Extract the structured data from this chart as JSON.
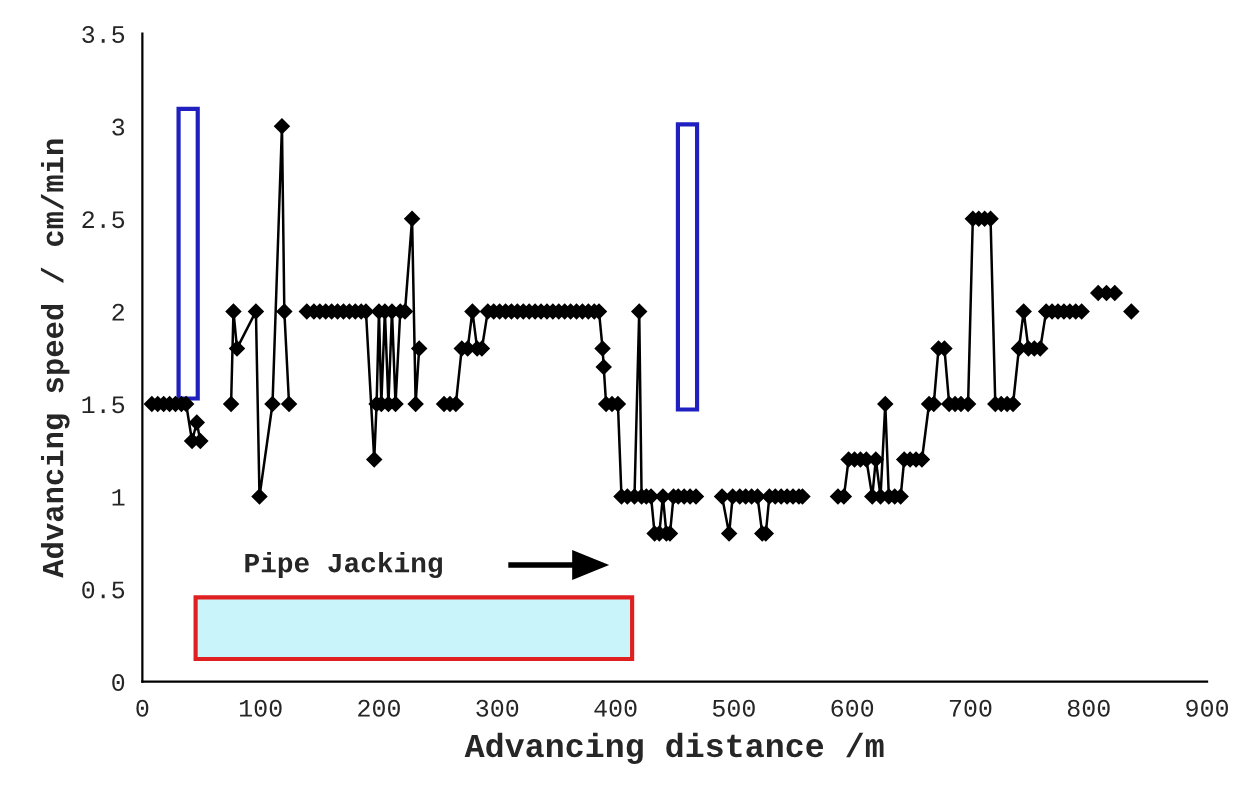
{
  "chart_data": {
    "type": "line",
    "xlabel": "Advancing distance /m",
    "ylabel": "Advancing speed / cm/min",
    "annotations": [
      "Pipe Jacking"
    ],
    "xlim": [
      0,
      900
    ],
    "xticks": [
      0,
      100,
      200,
      300,
      400,
      500,
      600,
      700,
      800,
      900
    ],
    "ylim": [
      0,
      3.5
    ],
    "yticks": [
      0,
      0.5,
      1,
      1.5,
      2,
      2.5,
      3,
      3.5
    ],
    "grid": false,
    "legend": false,
    "marker": "diamond",
    "line_style": "solid",
    "series": [
      {
        "color": "#000000",
        "x": [
          8,
          13,
          18,
          23,
          28,
          33,
          37,
          42,
          46,
          49,
          60,
          75,
          77,
          80,
          96,
          99,
          110,
          118,
          120,
          124,
          130,
          139,
          145,
          150,
          155,
          160,
          165,
          170,
          175,
          180,
          185,
          189,
          196,
          198,
          200,
          202,
          205,
          208,
          211,
          214,
          218,
          222,
          228,
          231,
          234,
          245,
          255,
          260,
          265,
          270,
          275,
          279,
          283,
          287,
          292,
          297,
          302,
          307,
          312,
          317,
          322,
          327,
          332,
          337,
          342,
          347,
          352,
          357,
          362,
          367,
          372,
          377,
          382,
          386,
          389,
          390,
          392,
          397,
          402,
          405,
          410,
          416,
          420,
          422,
          426,
          430,
          433,
          437,
          440,
          443,
          446,
          449,
          453,
          458,
          463,
          468,
          480,
          490,
          496,
          499,
          505,
          510,
          515,
          520,
          524,
          527,
          530,
          535,
          540,
          545,
          550,
          555,
          558,
          570,
          588,
          593,
          597,
          602,
          607,
          612,
          617,
          620,
          624,
          628,
          631,
          636,
          641,
          644,
          649,
          654,
          659,
          665,
          669,
          673,
          678,
          682,
          687,
          692,
          698,
          702,
          707,
          712,
          717,
          721,
          726,
          731,
          736,
          741,
          745,
          749,
          754,
          759,
          764,
          769,
          774,
          779,
          784,
          789,
          794,
          800,
          808,
          812,
          815,
          818,
          822,
          830,
          836
        ],
        "values": [
          1.5,
          1.5,
          1.5,
          1.5,
          1.5,
          1.5,
          1.5,
          1.3,
          1.4,
          1.3,
          null,
          1.5,
          2.0,
          1.8,
          2.0,
          1.0,
          1.5,
          3.0,
          2.0,
          1.5,
          null,
          2.0,
          2.0,
          2.0,
          2.0,
          2.0,
          2.0,
          2.0,
          2.0,
          2.0,
          2.0,
          2.0,
          1.2,
          1.5,
          2.0,
          1.5,
          2.0,
          1.5,
          2.0,
          1.5,
          2.0,
          2.0,
          2.5,
          1.5,
          1.8,
          null,
          1.5,
          1.5,
          1.5,
          1.8,
          1.8,
          2.0,
          1.8,
          1.8,
          2.0,
          2.0,
          2.0,
          2.0,
          2.0,
          2.0,
          2.0,
          2.0,
          2.0,
          2.0,
          2.0,
          2.0,
          2.0,
          2.0,
          2.0,
          2.0,
          2.0,
          2.0,
          2.0,
          2.0,
          1.8,
          1.7,
          1.5,
          1.5,
          1.5,
          1.0,
          1.0,
          1.0,
          2.0,
          1.0,
          1.0,
          1.0,
          0.8,
          0.8,
          1.0,
          0.8,
          0.8,
          1.0,
          1.0,
          1.0,
          1.0,
          1.0,
          null,
          1.0,
          0.8,
          1.0,
          1.0,
          1.0,
          1.0,
          1.0,
          0.8,
          0.8,
          1.0,
          1.0,
          1.0,
          1.0,
          1.0,
          1.0,
          1.0,
          null,
          1.0,
          1.0,
          1.2,
          1.2,
          1.2,
          1.2,
          1.0,
          1.2,
          1.0,
          1.5,
          1.0,
          1.0,
          1.0,
          1.2,
          1.2,
          1.2,
          1.2,
          1.5,
          1.5,
          1.8,
          1.8,
          1.5,
          1.5,
          1.5,
          1.5,
          2.5,
          2.5,
          2.5,
          2.5,
          1.5,
          1.5,
          1.5,
          1.5,
          1.8,
          2.0,
          1.8,
          1.8,
          1.8,
          2.0,
          2.0,
          2.0,
          2.0,
          2.0,
          2.0,
          2.0,
          null,
          2.1,
          null,
          2.1,
          null,
          2.1,
          null,
          2.0
        ]
      }
    ]
  }
}
